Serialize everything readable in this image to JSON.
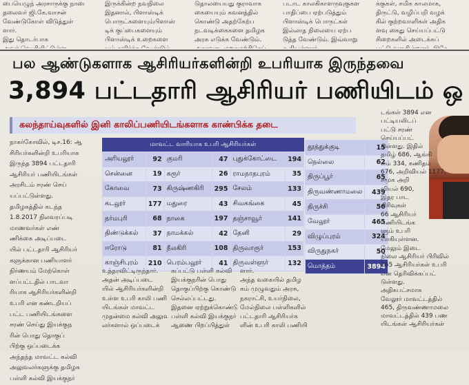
{
  "top_columns": [
    [
      "பையெழுந் அரசாருக்கு நாரை",
      "தலைவர் ஜி.கே.வாசன்",
      "வேண்டுகோள் விடுத்துள்",
      "ளார்.",
      "இது தொடர்பாக",
      "அவர் வெளியிட்டுள்ள"
    ],
    [
      "இருக்கின்ற நவநிலை",
      "இதனால், பிளாஸ்டிக்",
      "பொருட்களையும்பிளாஸ்",
      "டிக் குப்பைகளையும்",
      "பிளாஸ்டிக் உறைகளை",
      "யும் தவிர்க்க வேண்டும்."
    ],
    [
      "டுதாலயையது குராவாக",
      "கையையும் கவனத்தில்",
      "கொண்டு அதற்கேற்ப",
      "நடவடிக்கைகளை தமிழக",
      "அரசு எடுக்க வேண்டும்.",
      "அதாவது, மறுசுழற்சிசெய்"
    ],
    [
      "படாட காலகிகாளருவுகுகள",
      "பாதிப்பை ஏற்படுத்தும்",
      "பிளாஸ்டிக் பொருட்கள்",
      "இல்லாத நிலையை ஏற்ப",
      "டுத்த வேண்டும். இவ்வாறு",
      "கூறியுள்ளார்."
    ],
    [
      "க்குகள், சமிக காலமாக,",
      "திருட்டு, வழிப்பறி வழக்",
      "கில் குற்றவாளிகள் அதிக",
      "ளவு கைது செய்யப்பட்டு",
      "சிறைகளில் அடைக்கப்",
      "பட்டு வருகின்றனர். இதே"
    ]
  ],
  "kicker": "பல ஆண்டுகளாக ஆசிரியர்களின்றி உபரியாக இருந்தவை",
  "headline": "3,894 பட்டதாரி ஆசிரியர் பணியிடம் ஒ",
  "subhead": "கலந்தாய்வுகளில் இனி காலிப்பணியிடங்களாக காண்பிக்க தடை",
  "left_column": [
    "நாகர்கோவில், டிச.16: ஆ",
    "சிரியர்களின்றி உபரியாக",
    "இருந்த 3894 பட்டதாரி",
    "ஆசிரியர் பணியிடங்கள்",
    "அரசிடம் சரண் செய்",
    "யப்பட்டுள்ளது.",
    "தமிழகத்தில் கடந்த",
    "1.8.2017 நிலவரப்படி",
    "மாணவர்கள் எண்",
    "ணிக்கை அடிப்படை",
    "யில் பட்டதாரி ஆசிரியர்",
    "களுக்கான பணியாளர்",
    "நிர்ணயம் மேற்கொள்",
    "ளப்பட்டதில் பாடவா",
    "ரியாக ஆசிரியர்களின்றி",
    "உபரி என கண்டறியப்",
    "பட்ட பணியிடங்களை",
    "சரண் செய்து இயக்குந",
    "ரின் பொது தொகுப்",
    "பிற்கு ஒப்படைக்க",
    "அந்தந்த மாவட்ட கல்வி",
    "அலுவலர்களுக்கு தமிழக",
    "பள்ளி கல்வி இயக்குநர்"
  ],
  "table_title": "மாவட்ட வாரியாக உபரி ஆசிரியர்கள்",
  "table_rows": [
    [
      "அரியலூர்",
      "92",
      "குமரி",
      "47",
      "புதுக்கோட்டை",
      "194"
    ],
    [
      "சென்னை",
      "19",
      "கரூர்",
      "26",
      "ராமநாதபுரம்",
      "35"
    ],
    [
      "கோவை",
      "73",
      "கிருஷ்ணகிரி",
      "295",
      "சேலம்",
      "133"
    ],
    [
      "கடலூர்",
      "177",
      "மதுரை",
      "43",
      "சிவகங்கை",
      "45"
    ],
    [
      "தர்மபுரி",
      "68",
      "நாகை",
      "197",
      "தஞ்சாவூர்",
      "141"
    ],
    [
      "திண்டுக்கல்",
      "37",
      "நாமக்கல்",
      "42",
      "தேனி",
      "29"
    ],
    [
      "ஈரோடு",
      "81",
      "நீலகிரி",
      "108",
      "திருவாரூர்",
      "153"
    ],
    [
      "காஞ்சிபுரம்",
      "210",
      "பெரம்பலூர்",
      "41",
      "திருவள்ளூர்",
      "132"
    ]
  ],
  "right_table_rows": [
    [
      "தூத்துக்குடி",
      "15"
    ],
    [
      "நெல்லை",
      "62"
    ],
    [
      "திருப்பூர்",
      "65"
    ],
    [
      "திருவண்ணாமலை",
      "439"
    ],
    [
      "திருச்சி",
      "56"
    ],
    [
      "வேலூர்",
      "465"
    ],
    [
      "விழுப்புரம்",
      "324"
    ],
    [
      "விருதுநகர்",
      "50"
    ]
  ],
  "right_table_total": [
    "மொத்தம்",
    "3894"
  ],
  "bottom_columns": [
    [
      "உத்தரவிட்டிருந்தார்.",
      "அதன் அடிப்படை",
      "யில் ஆசிரியர்களின்றி",
      "உள்ள உபரி காலி பணி",
      "யிடங்கள் மாவட்ட",
      "முதன்மை கல்வி அலுவ",
      "லர்களால் ஒப்படைக்"
    ],
    [
      "கப்பட்டு பள்ளி கல்வி",
      "இயக்குநரின் பொது",
      "தொகுப்பிற்கு கொண்டு",
      "செல்லப்பட்டது.",
      "இதனை ஏற்றுக்கொண்டு",
      "பள்ளி கல்வி இயக்குநர்",
      "ஆணை பிறப்பித்துள்"
    ],
    [
      "ளார்.",
      "அந்த வகையில் தமிழ",
      "கம் முழுவதும் அரசு,",
      "நகராட்சி, உயர்நிலை,",
      "மேல்நிலை பள்ளிகளில்",
      "பட்டதாரி ஆசிரியர்க",
      "ளின் உபரி காலி பணியி"
    ],
    [
      "",
      "",
      "",
      "",
      "",
      "",
      ""
    ]
  ],
  "right_column": [
    "டங்கள் 3894 என",
    "பட்டியலிடப்",
    "பட்டு சரண்",
    "செய்யப்பட்",
    "டுள்ளது. இதில்",
    "தமிழ் 686, ஆங்கி",
    "லம் 334, கணிதம்",
    "676, அறிவியல் 1177,",
    "சமூக அறி",
    "வியல் 690,",
    "இதர பாட",
    "பிரிவுகள்",
    "66 ஆசிரியர்",
    "பணியிடங்க",
    "ளும் உபரி",
    "யாகியுள்ளன.",
    "மேலும் இடை",
    "நிலை ஆசிரியர் பிரிவில்",
    "265 ஆசிரியர்கள் உபரி",
    "என தெரிவிக்கப்பட்",
    "டுள்ளது.",
    "அதிகபட்சமாக",
    "வேலூர் மாவட்டத்தில்",
    "465, திருவண்ணாமலை",
    "மாவட்டத்தில் 439 பண",
    "யிடங்கள் ஆசிரியர்கள்"
  ]
}
